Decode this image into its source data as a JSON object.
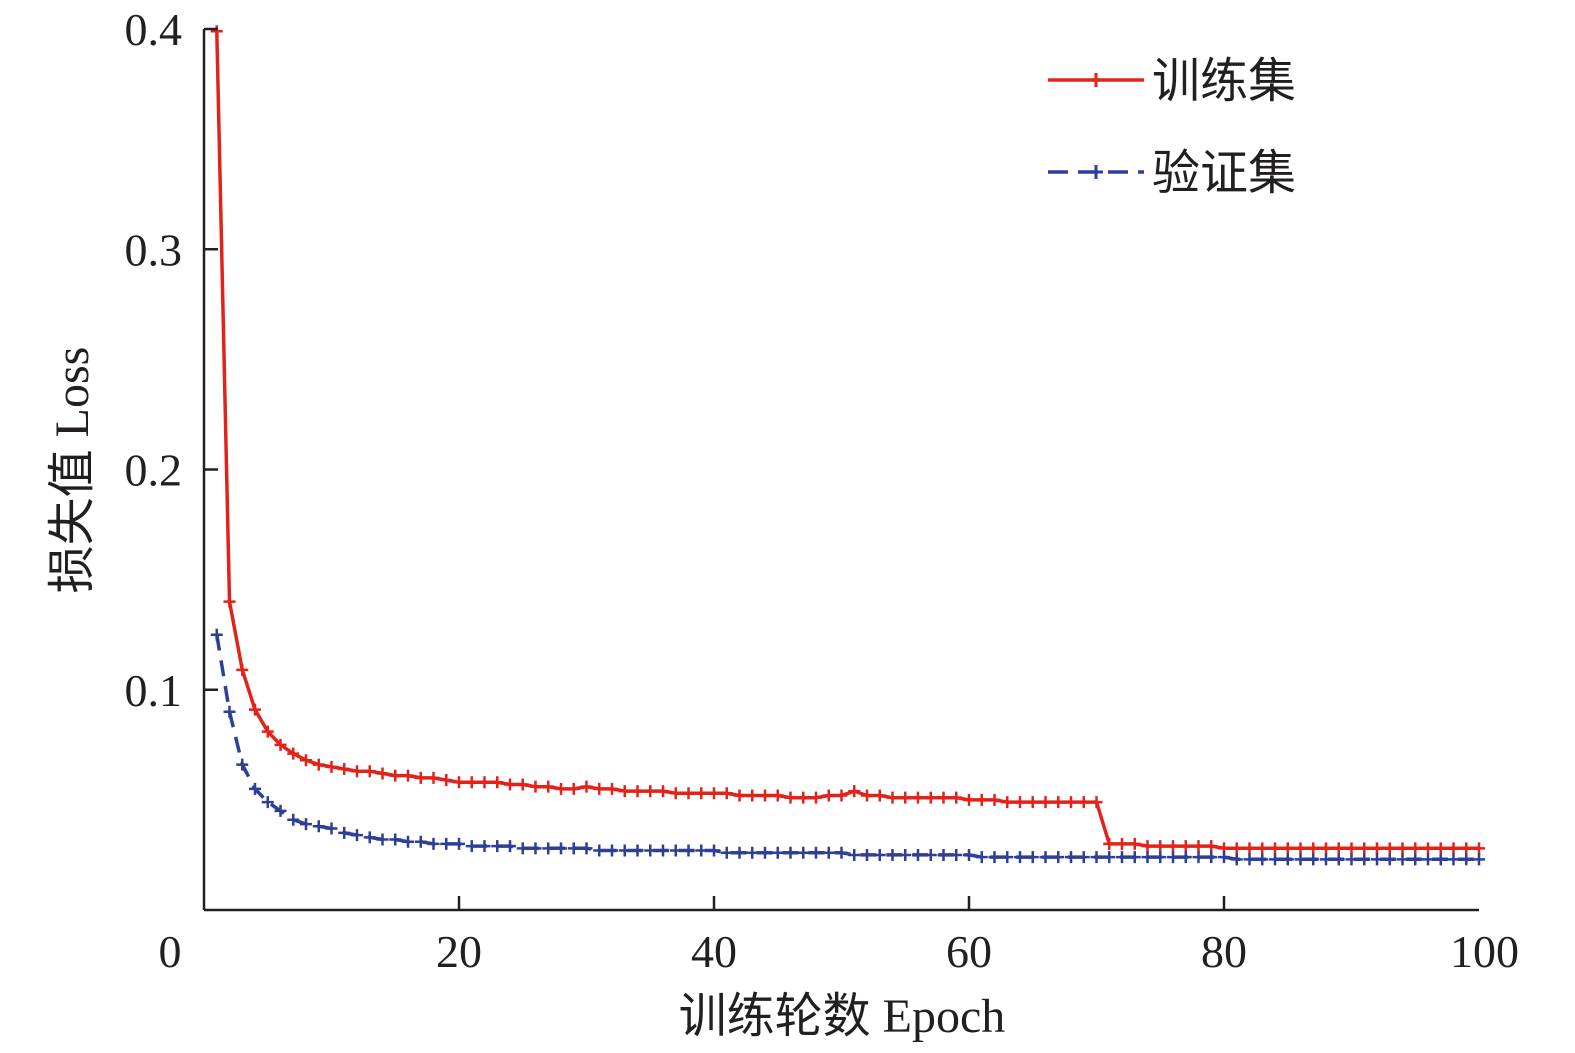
{
  "chart_data": {
    "type": "line",
    "title": "",
    "xlabel": "训练轮数 Epoch",
    "ylabel": "损失值 Loss",
    "xlim": [
      0,
      100
    ],
    "ylim": [
      0,
      0.4
    ],
    "x_ticks": [
      "0",
      "20",
      "40",
      "60",
      "80",
      "100"
    ],
    "y_ticks": [
      "0.1",
      "0.2",
      "0.3",
      "0.4"
    ],
    "legend_position": "top-right",
    "grid": false,
    "series": [
      {
        "name": "训练集",
        "color": "#e2231a",
        "line_style": "solid",
        "marker": "plus",
        "x": [
          1,
          2,
          3,
          4,
          5,
          6,
          7,
          8,
          9,
          10,
          11,
          12,
          13,
          14,
          15,
          16,
          17,
          18,
          19,
          20,
          21,
          22,
          23,
          24,
          25,
          26,
          27,
          28,
          29,
          30,
          31,
          32,
          33,
          34,
          35,
          36,
          37,
          38,
          39,
          40,
          41,
          42,
          43,
          44,
          45,
          46,
          47,
          48,
          49,
          50,
          51,
          52,
          53,
          54,
          55,
          56,
          57,
          58,
          59,
          60,
          61,
          62,
          63,
          64,
          65,
          66,
          67,
          68,
          69,
          70,
          71,
          72,
          73,
          74,
          75,
          76,
          77,
          78,
          79,
          80,
          81,
          82,
          83,
          84,
          85,
          86,
          87,
          88,
          89,
          90,
          91,
          92,
          93,
          94,
          95,
          96,
          97,
          98,
          99,
          100
        ],
        "values": [
          0.399,
          0.14,
          0.109,
          0.091,
          0.081,
          0.075,
          0.071,
          0.068,
          0.066,
          0.065,
          0.064,
          0.063,
          0.063,
          0.062,
          0.061,
          0.061,
          0.06,
          0.06,
          0.059,
          0.058,
          0.058,
          0.058,
          0.058,
          0.057,
          0.057,
          0.056,
          0.056,
          0.055,
          0.055,
          0.056,
          0.055,
          0.055,
          0.054,
          0.054,
          0.054,
          0.054,
          0.053,
          0.053,
          0.053,
          0.053,
          0.053,
          0.052,
          0.052,
          0.052,
          0.052,
          0.051,
          0.051,
          0.051,
          0.052,
          0.052,
          0.054,
          0.052,
          0.052,
          0.051,
          0.051,
          0.051,
          0.051,
          0.051,
          0.051,
          0.05,
          0.05,
          0.05,
          0.049,
          0.049,
          0.049,
          0.049,
          0.049,
          0.049,
          0.049,
          0.049,
          0.03,
          0.03,
          0.03,
          0.029,
          0.029,
          0.029,
          0.029,
          0.029,
          0.029,
          0.028,
          0.028,
          0.028,
          0.028,
          0.028,
          0.028,
          0.028,
          0.028,
          0.028,
          0.028,
          0.028,
          0.028,
          0.028,
          0.028,
          0.028,
          0.028,
          0.028,
          0.028,
          0.028,
          0.028,
          0.028
        ]
      },
      {
        "name": "验证集",
        "color": "#2e3f97",
        "line_style": "dashed",
        "marker": "plus",
        "x": [
          1,
          2,
          3,
          4,
          5,
          6,
          7,
          8,
          9,
          10,
          11,
          12,
          13,
          14,
          15,
          16,
          17,
          18,
          19,
          20,
          21,
          22,
          23,
          24,
          25,
          26,
          27,
          28,
          29,
          30,
          31,
          32,
          33,
          34,
          35,
          36,
          37,
          38,
          39,
          40,
          41,
          42,
          43,
          44,
          45,
          46,
          47,
          48,
          49,
          50,
          51,
          52,
          53,
          54,
          55,
          56,
          57,
          58,
          59,
          60,
          61,
          62,
          63,
          64,
          65,
          66,
          67,
          68,
          69,
          70,
          71,
          72,
          73,
          74,
          75,
          76,
          77,
          78,
          79,
          80,
          81,
          82,
          83,
          84,
          85,
          86,
          87,
          88,
          89,
          90,
          91,
          92,
          93,
          94,
          95,
          96,
          97,
          98,
          99,
          100
        ],
        "values": [
          0.125,
          0.09,
          0.066,
          0.055,
          0.049,
          0.045,
          0.041,
          0.039,
          0.038,
          0.037,
          0.035,
          0.034,
          0.033,
          0.032,
          0.032,
          0.031,
          0.031,
          0.03,
          0.03,
          0.03,
          0.029,
          0.029,
          0.029,
          0.029,
          0.028,
          0.028,
          0.028,
          0.028,
          0.028,
          0.028,
          0.027,
          0.027,
          0.027,
          0.027,
          0.027,
          0.027,
          0.027,
          0.027,
          0.027,
          0.027,
          0.026,
          0.026,
          0.026,
          0.026,
          0.026,
          0.026,
          0.026,
          0.026,
          0.026,
          0.026,
          0.025,
          0.025,
          0.025,
          0.025,
          0.025,
          0.025,
          0.025,
          0.025,
          0.025,
          0.025,
          0.024,
          0.024,
          0.024,
          0.024,
          0.024,
          0.024,
          0.024,
          0.024,
          0.024,
          0.024,
          0.024,
          0.024,
          0.024,
          0.024,
          0.024,
          0.024,
          0.024,
          0.024,
          0.024,
          0.024,
          0.023,
          0.023,
          0.023,
          0.023,
          0.023,
          0.023,
          0.023,
          0.023,
          0.023,
          0.023,
          0.023,
          0.023,
          0.023,
          0.023,
          0.023,
          0.023,
          0.023,
          0.023,
          0.023,
          0.023
        ]
      }
    ]
  }
}
